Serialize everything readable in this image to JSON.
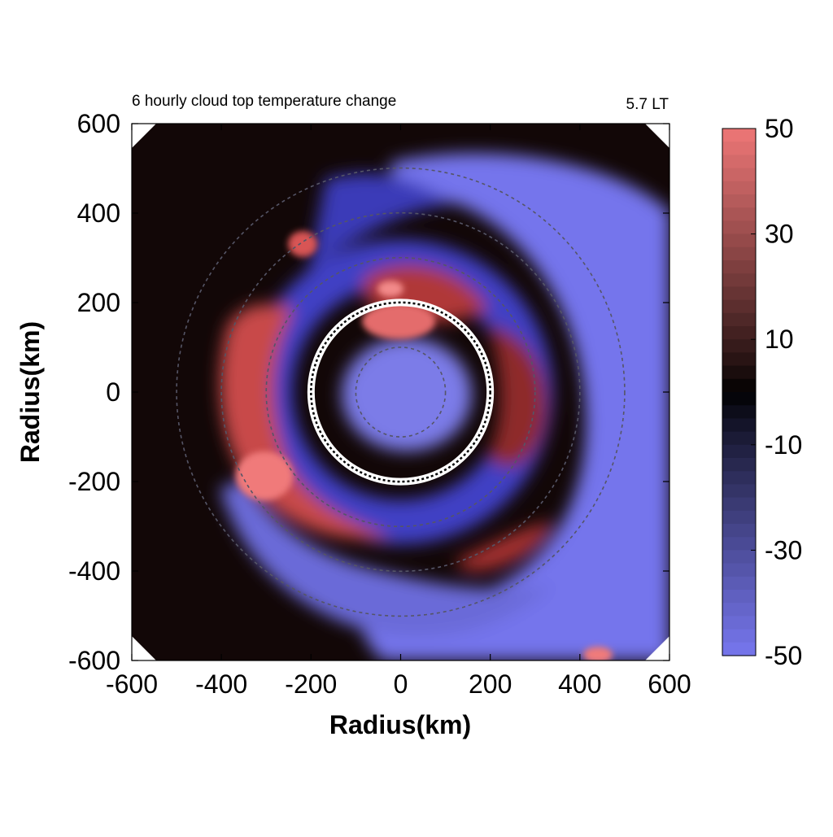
{
  "chart_data": {
    "type": "heatmap",
    "title": "6 hourly cloud top temperature change",
    "subtitle": "5.7 LT",
    "xlabel": "Radius(km)",
    "ylabel": "Radius(km)",
    "xlim": [
      -600,
      600
    ],
    "ylim": [
      -600,
      600
    ],
    "xticks": [
      "-600",
      "-400",
      "-200",
      "0",
      "200",
      "400",
      "600"
    ],
    "yticks": [
      "600",
      "400",
      "200",
      "0",
      "-200",
      "-400",
      "-600"
    ],
    "x_tick_values": [
      -600,
      -400,
      -200,
      0,
      200,
      400,
      600
    ],
    "y_tick_values": [
      600,
      400,
      200,
      0,
      -200,
      -400,
      -600
    ],
    "colorbar": {
      "range": [
        -50,
        50
      ],
      "ticks": [
        "50",
        "30",
        "10",
        "-10",
        "-30",
        "-50"
      ],
      "tick_values": [
        50,
        30,
        10,
        -10,
        -30,
        -50
      ],
      "low_color": "#7777ee",
      "mid_color": "#000000",
      "high_color": "#ee7777"
    },
    "highlight_circle_radius_km": 200,
    "dashed_ring_radii_km": [
      100,
      200,
      300,
      400,
      500
    ],
    "regions": [
      {
        "label": "warming (red) ring",
        "radius_range_km": [
          100,
          350
        ],
        "sector": "west / south-west",
        "approx_value": 30
      },
      {
        "label": "core warming",
        "radius_range_km": [
          0,
          200
        ],
        "sector": "north",
        "approx_value": 35
      },
      {
        "label": "outer cooling (blue) band",
        "radius_range_km": [
          300,
          600
        ],
        "sector": "east / south-east",
        "approx_value": -50
      },
      {
        "label": "outer near-zero",
        "radius_range_km": [
          350,
          600
        ],
        "sector": "north-west",
        "approx_value": 3
      }
    ]
  }
}
